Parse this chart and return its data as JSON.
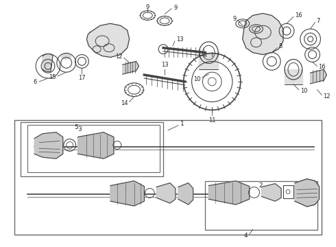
{
  "bg_color": "#ffffff",
  "line_color": "#444444",
  "border_color": "#666666",
  "label_color": "#222222",
  "fig_width": 4.9,
  "fig_height": 3.6,
  "dpi": 100
}
